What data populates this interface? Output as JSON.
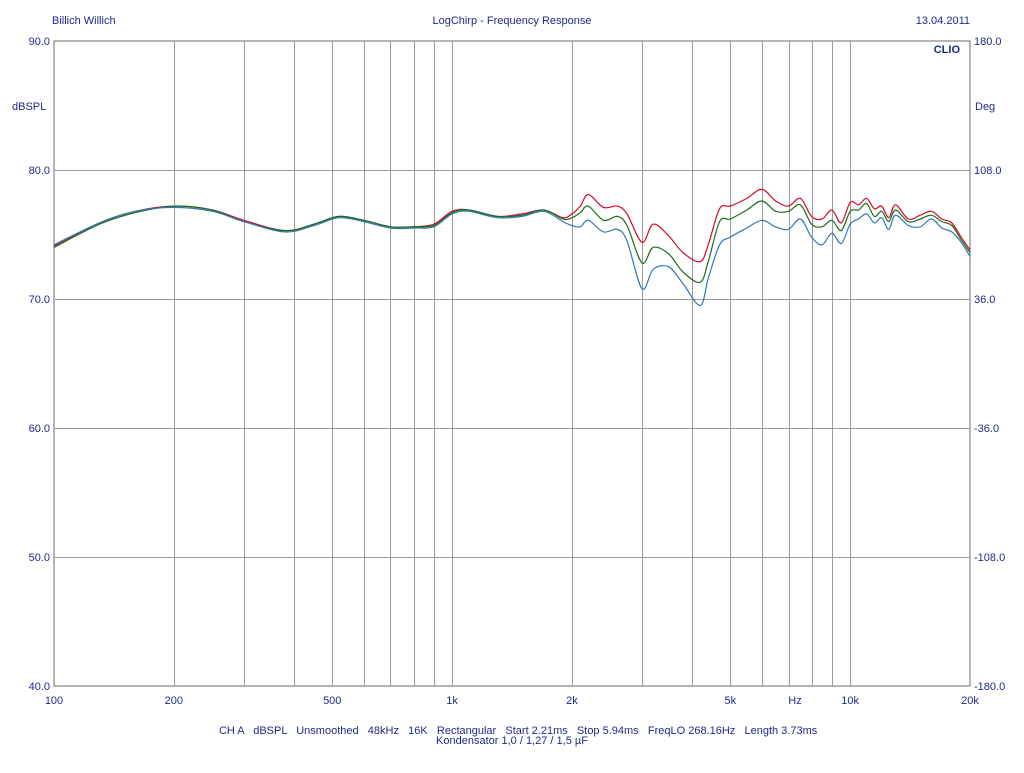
{
  "header": {
    "left": "Billich Willich",
    "center": "LogChirp - Frequency Response",
    "right": "13.04.2011"
  },
  "brand": "CLIO",
  "footer": {
    "line1": [
      "CH A",
      "dBSPL",
      "Unsmoothed",
      "48kHz",
      "16K",
      "Rectangular",
      "Start 2.21ms",
      "Stop 5.94ms",
      "FreqLO 268.16Hz",
      "Length 3.73ms"
    ],
    "line2": "Kondensator 1,0 / 1,27 / 1,5 µF"
  },
  "colors": {
    "red": "#d40a2a",
    "green": "#1a6e1a",
    "blue": "#2f78b4",
    "text": "#1f2a8a",
    "grid": "#9a9a9a"
  },
  "chart_data": {
    "type": "line",
    "title": "LogChirp - Frequency Response",
    "xscale": "log",
    "xlim": [
      100,
      20000
    ],
    "ylim": [
      40,
      90
    ],
    "y2lim": [
      -180,
      180
    ],
    "ylabel": "dBSPL",
    "y2label": "Deg",
    "xunit_label": "Hz",
    "grid": true,
    "y_ticks": [
      {
        "value": 40,
        "label": "40.0"
      },
      {
        "value": 50,
        "label": "50.0"
      },
      {
        "value": 60,
        "label": "60.0"
      },
      {
        "value": 70,
        "label": "70.0"
      },
      {
        "value": 80,
        "label": "80.0"
      },
      {
        "value": 90,
        "label": "90.0"
      }
    ],
    "y2_ticks": [
      {
        "value": -180,
        "label": "-180.0"
      },
      {
        "value": -108,
        "label": "-108.0"
      },
      {
        "value": -36,
        "label": "-36.0"
      },
      {
        "value": 36,
        "label": "36.0"
      },
      {
        "value": 108,
        "label": "108.0"
      },
      {
        "value": 180,
        "label": "180.0"
      }
    ],
    "x_ticks": [
      {
        "value": 100,
        "label": "100"
      },
      {
        "value": 200,
        "label": "200"
      },
      {
        "value": 500,
        "label": "500"
      },
      {
        "value": 1000,
        "label": "1k"
      },
      {
        "value": 2000,
        "label": "2k"
      },
      {
        "value": 5000,
        "label": "5k"
      },
      {
        "value": 10000,
        "label": "10k"
      },
      {
        "value": 20000,
        "label": "20k"
      }
    ],
    "x_gridlines": [
      200,
      300,
      400,
      500,
      600,
      700,
      800,
      900,
      1000,
      2000,
      3000,
      4000,
      5000,
      6000,
      7000,
      8000,
      9000,
      10000
    ],
    "series": [
      {
        "color": "#d40a2a",
        "x": [
          100,
          130,
          160,
          200,
          250,
          300,
          380,
          450,
          520,
          600,
          700,
          800,
          900,
          1000,
          1100,
          1300,
          1500,
          1700,
          1900,
          2000,
          2100,
          2200,
          2400,
          2600,
          2750,
          3000,
          3200,
          3500,
          3800,
          4200,
          4400,
          4700,
          5000,
          5500,
          6000,
          6500,
          7000,
          7500,
          8000,
          8500,
          9000,
          9500,
          10000,
          10500,
          11000,
          11500,
          12000,
          12500,
          13000,
          14000,
          15000,
          16000,
          17000,
          18000,
          19000,
          20000
        ],
        "y": [
          74.1,
          75.9,
          76.8,
          77.2,
          76.9,
          76.1,
          75.3,
          75.8,
          76.4,
          76.1,
          75.6,
          75.6,
          75.8,
          76.8,
          76.9,
          76.4,
          76.6,
          76.9,
          76.3,
          76.6,
          77.2,
          78.1,
          77.1,
          77.2,
          76.6,
          74.4,
          75.8,
          74.9,
          73.6,
          72.9,
          74.2,
          77.0,
          77.2,
          77.8,
          78.5,
          77.6,
          77.2,
          77.8,
          76.4,
          76.2,
          76.9,
          75.9,
          77.5,
          77.3,
          77.8,
          77.0,
          77.2,
          76.3,
          77.3,
          76.2,
          76.5,
          76.8,
          76.2,
          75.9,
          74.8,
          73.8
        ]
      },
      {
        "color": "#1a6e1a",
        "x": [
          100,
          130,
          160,
          200,
          250,
          300,
          380,
          450,
          520,
          600,
          700,
          800,
          900,
          1000,
          1100,
          1300,
          1500,
          1700,
          1900,
          2000,
          2100,
          2200,
          2400,
          2600,
          2750,
          3000,
          3200,
          3500,
          3800,
          4200,
          4400,
          4700,
          5000,
          5500,
          6000,
          6500,
          7000,
          7500,
          8000,
          8500,
          9000,
          9500,
          10000,
          10500,
          11000,
          11500,
          12000,
          12500,
          13000,
          14000,
          15000,
          16000,
          17000,
          18000,
          19000,
          20000
        ],
        "y": [
          74.0,
          75.8,
          76.7,
          77.2,
          76.9,
          76.0,
          75.3,
          75.8,
          76.4,
          76.1,
          75.6,
          75.6,
          75.7,
          76.7,
          76.9,
          76.4,
          76.5,
          76.9,
          76.2,
          76.3,
          76.7,
          77.2,
          76.1,
          76.4,
          75.7,
          72.8,
          74.0,
          73.5,
          72.1,
          71.3,
          72.9,
          76.0,
          76.2,
          76.9,
          77.6,
          76.8,
          76.8,
          77.3,
          75.8,
          75.6,
          76.1,
          75.3,
          76.8,
          76.9,
          77.4,
          76.4,
          76.8,
          76.0,
          76.9,
          76.0,
          76.2,
          76.5,
          76.0,
          75.7,
          74.6,
          73.6
        ]
      },
      {
        "color": "#2f78b4",
        "x": [
          100,
          130,
          160,
          200,
          250,
          300,
          380,
          450,
          520,
          600,
          700,
          800,
          900,
          1000,
          1100,
          1300,
          1500,
          1700,
          1900,
          2000,
          2100,
          2200,
          2400,
          2600,
          2750,
          3000,
          3200,
          3500,
          3800,
          4200,
          4400,
          4700,
          5000,
          5500,
          6000,
          6500,
          7000,
          7500,
          8000,
          8500,
          9000,
          9500,
          10000,
          10500,
          11000,
          11500,
          12000,
          12500,
          13000,
          14000,
          15000,
          16000,
          17000,
          18000,
          19000,
          20000
        ],
        "y": [
          74.2,
          75.9,
          76.8,
          77.1,
          76.8,
          76.0,
          75.2,
          75.7,
          76.3,
          76.0,
          75.5,
          75.5,
          75.6,
          76.6,
          76.8,
          76.3,
          76.4,
          76.8,
          76.0,
          75.7,
          75.6,
          76.1,
          75.2,
          75.4,
          74.5,
          70.8,
          72.3,
          72.5,
          71.2,
          69.5,
          71.6,
          74.2,
          74.8,
          75.5,
          76.1,
          75.6,
          75.4,
          76.2,
          74.8,
          74.2,
          75.1,
          74.3,
          75.8,
          76.2,
          76.6,
          75.9,
          76.3,
          75.4,
          76.5,
          75.7,
          75.6,
          76.2,
          75.5,
          75.2,
          74.4,
          73.3
        ]
      }
    ]
  }
}
